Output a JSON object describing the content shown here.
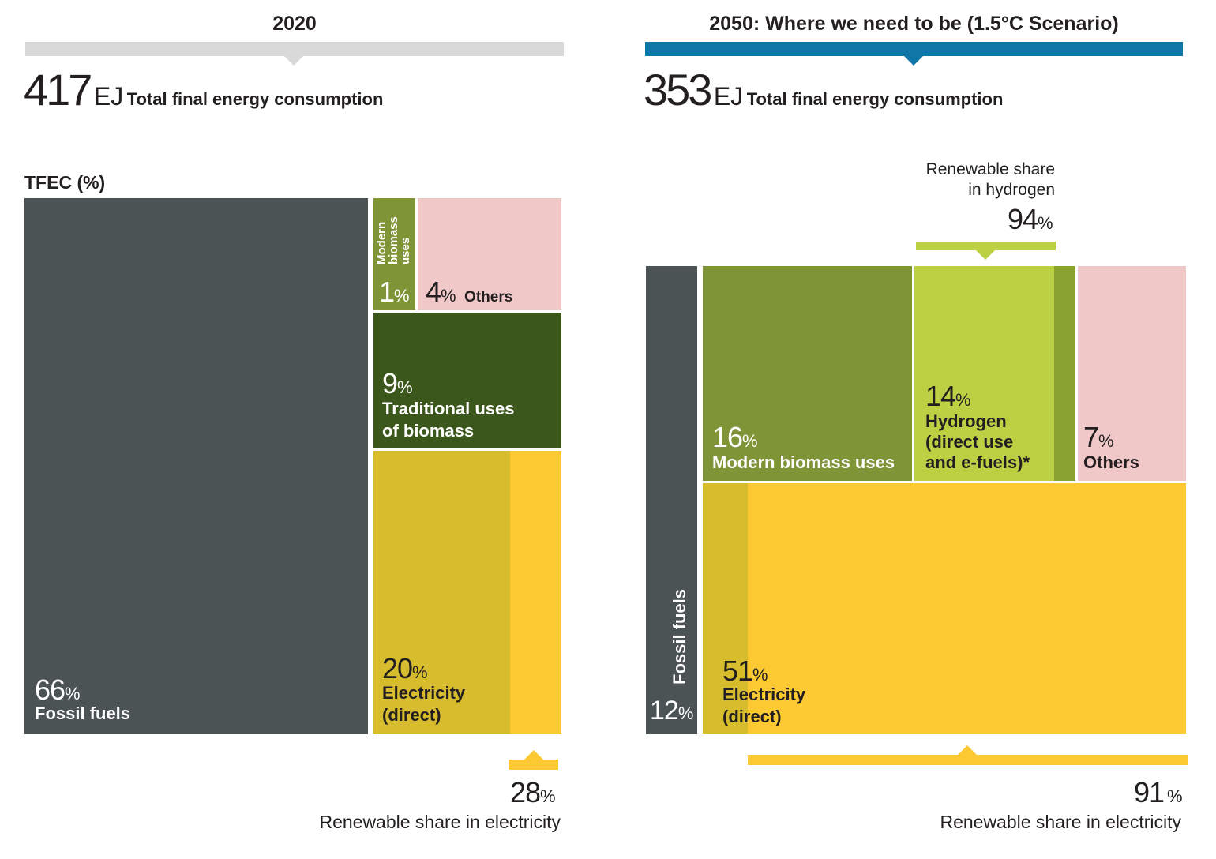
{
  "left": {
    "header": "2020",
    "total_value": "417",
    "total_unit": "EJ",
    "total_label": "Total final energy consumption",
    "axis_label": "TFEC (%)",
    "fossil": {
      "pct": "66",
      "label": "Fossil fuels"
    },
    "modern_biomass": {
      "pct": "1",
      "label": "Modern biomass uses",
      "label_lines": [
        "Modern",
        "biomass",
        "uses"
      ]
    },
    "others": {
      "pct": "4",
      "label": "Others"
    },
    "traditional": {
      "pct": "9",
      "label_line1": "Traditional uses",
      "label_line2": "of biomass"
    },
    "electricity": {
      "pct": "20",
      "label_line1": "Electricity",
      "label_line2": "(direct)"
    },
    "renew_elec": {
      "pct": "28",
      "label": "Renewable share in electricity"
    }
  },
  "right": {
    "header": "2050: Where we need to be (1.5°C Scenario)",
    "total_value": "353",
    "total_unit": "EJ",
    "total_label": "Total final energy consumption",
    "fossil": {
      "pct": "12",
      "label": "Fossil fuels"
    },
    "modern_biomass": {
      "pct": "16",
      "label": "Modern biomass uses"
    },
    "hydrogen": {
      "pct": "14",
      "label_line1": "Hydrogen",
      "label_line2": "(direct use",
      "label_line3": "and e-fuels)*"
    },
    "others": {
      "pct": "7",
      "label": "Others"
    },
    "electricity": {
      "pct": "51",
      "label_line1": "Electricity",
      "label_line2": "(direct)"
    },
    "renew_h2": {
      "label_line1": "Renewable share",
      "label_line2": "in hydrogen",
      "pct": "94"
    },
    "renew_elec": {
      "pct": "91",
      "label": "Renewable share in electricity"
    }
  },
  "percent_sign": "%",
  "colors": {
    "fossil": "#4b5355",
    "modern_biomass": "#7f9437",
    "others": "#f0c8c8",
    "traditional": "#3c571c",
    "electricity_nonrenewable": "#d7bd2e",
    "electricity_renewable": "#fdc933",
    "hydrogen": "#bbd043",
    "hydrogen_nonrenewable": "#8aa330",
    "bar_2020": "#d9d9d9",
    "bar_2050": "#0f77a8"
  },
  "chart_data": [
    {
      "type": "treemap",
      "title": "2020",
      "total": {
        "value": 417,
        "unit": "EJ"
      },
      "categories": [
        "Fossil fuels",
        "Modern biomass uses",
        "Others",
        "Traditional uses of biomass",
        "Electricity (direct)"
      ],
      "values": [
        66,
        1,
        4,
        9,
        20
      ],
      "renewable_share_electricity": 28
    },
    {
      "type": "treemap",
      "title": "2050: Where we need to be (1.5°C Scenario)",
      "total": {
        "value": 353,
        "unit": "EJ"
      },
      "categories": [
        "Fossil fuels",
        "Modern biomass uses",
        "Hydrogen (direct use and e-fuels)*",
        "Others",
        "Electricity (direct)"
      ],
      "values": [
        12,
        16,
        14,
        7,
        51
      ],
      "renewable_share_hydrogen": 94,
      "renewable_share_electricity": 91
    }
  ]
}
